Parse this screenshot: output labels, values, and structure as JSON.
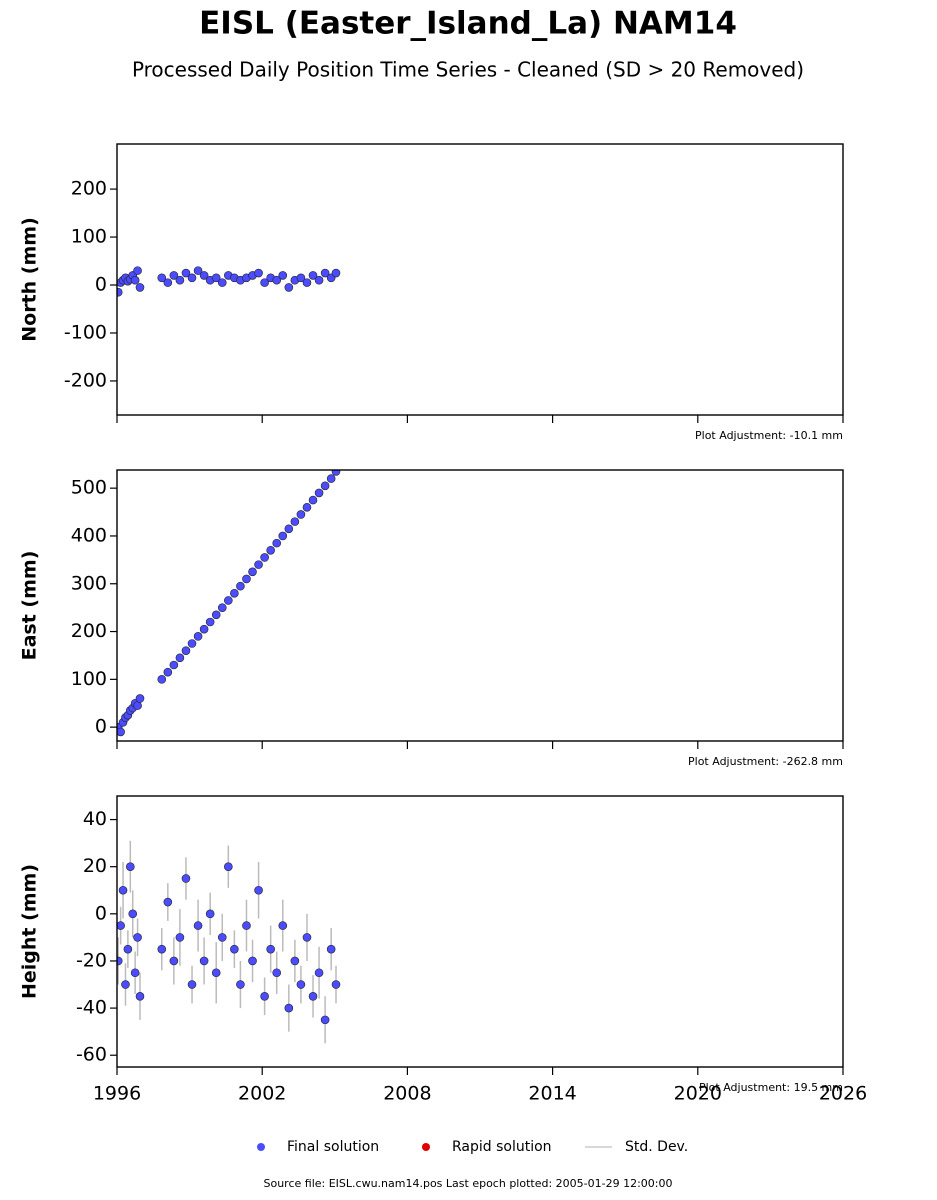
{
  "title": "EISL (Easter_Island_La) NAM14",
  "subtitle": "Processed Daily Position Time Series - Cleaned (SD > 20 Removed)",
  "chart_data": [
    {
      "type": "scatter",
      "y_label": "North (mm)",
      "annotation": "Plot Adjustment: -10.1 mm",
      "color": "#4b4bff",
      "x": [
        1996.05,
        1996.15,
        1996.25,
        1996.35,
        1996.45,
        1996.55,
        1996.65,
        1996.75,
        1996.85,
        1996.95,
        1997.85,
        1998.1,
        1998.35,
        1998.6,
        1998.85,
        1999.1,
        1999.35,
        1999.6,
        1999.85,
        2000.1,
        2000.35,
        2000.6,
        2000.85,
        2001.1,
        2001.35,
        2001.6,
        2001.85,
        2002.1,
        2002.35,
        2002.6,
        2002.85,
        2003.1,
        2003.35,
        2003.6,
        2003.85,
        2004.1,
        2004.35,
        2004.6,
        2004.85,
        2005.05
      ],
      "values": [
        -15,
        5,
        10,
        15,
        8,
        12,
        20,
        10,
        30,
        -5,
        15,
        5,
        20,
        10,
        25,
        15,
        30,
        20,
        10,
        15,
        5,
        20,
        15,
        10,
        15,
        20,
        25,
        5,
        15,
        10,
        20,
        -5,
        10,
        15,
        5,
        20,
        10,
        25,
        15,
        25
      ],
      "xlim": [
        1996,
        2026
      ],
      "xticks": [
        1996,
        2002,
        2008,
        2014,
        2020,
        2026
      ],
      "ylim": [
        -271,
        294
      ],
      "yticks": [
        -200,
        -100,
        0,
        100,
        200
      ]
    },
    {
      "type": "scatter",
      "y_label": "East (mm)",
      "annotation": "Plot Adjustment: -262.8 mm",
      "color": "#4b4bff",
      "x": [
        1996.05,
        1996.15,
        1996.25,
        1996.35,
        1996.45,
        1996.55,
        1996.65,
        1996.75,
        1996.85,
        1996.95,
        1997.85,
        1998.1,
        1998.35,
        1998.6,
        1998.85,
        1999.1,
        1999.35,
        1999.6,
        1999.85,
        2000.1,
        2000.35,
        2000.6,
        2000.85,
        2001.1,
        2001.35,
        2001.6,
        2001.85,
        2002.1,
        2002.35,
        2002.6,
        2002.85,
        2003.1,
        2003.35,
        2003.6,
        2003.85,
        2004.1,
        2004.35,
        2004.6,
        2004.85,
        2005.05
      ],
      "values": [
        0,
        -10,
        10,
        20,
        25,
        35,
        40,
        50,
        45,
        60,
        100,
        115,
        130,
        145,
        160,
        175,
        190,
        205,
        220,
        235,
        250,
        265,
        280,
        295,
        310,
        325,
        340,
        355,
        370,
        385,
        400,
        415,
        430,
        445,
        460,
        475,
        490,
        505,
        520,
        535
      ],
      "xlim": [
        1996,
        2026
      ],
      "xticks": [
        1996,
        2002,
        2008,
        2014,
        2020,
        2026
      ],
      "ylim": [
        -29,
        538
      ],
      "yticks": [
        0,
        100,
        200,
        300,
        400,
        500
      ]
    },
    {
      "type": "scatter",
      "y_label": "Height (mm)",
      "annotation": "Plot Adjustment: 19.5 mm",
      "color": "#4b4bff",
      "error_color": "#bbbbbb",
      "x": [
        1996.05,
        1996.15,
        1996.25,
        1996.35,
        1996.45,
        1996.55,
        1996.65,
        1996.75,
        1996.85,
        1996.95,
        1997.85,
        1998.1,
        1998.35,
        1998.6,
        1998.85,
        1999.1,
        1999.35,
        1999.6,
        1999.85,
        2000.1,
        2000.35,
        2000.6,
        2000.85,
        2001.1,
        2001.35,
        2001.6,
        2001.85,
        2002.1,
        2002.35,
        2002.6,
        2002.85,
        2003.1,
        2003.35,
        2003.6,
        2003.85,
        2004.1,
        2004.35,
        2004.6,
        2004.85,
        2005.05
      ],
      "values": [
        -20,
        -5,
        10,
        -30,
        -15,
        20,
        0,
        -25,
        -10,
        -35,
        -15,
        5,
        -20,
        -10,
        15,
        -30,
        -5,
        -20,
        0,
        -25,
        -10,
        20,
        -15,
        -30,
        -5,
        -20,
        10,
        -35,
        -15,
        -25,
        -5,
        -40,
        -20,
        -30,
        -10,
        -35,
        -25,
        -45,
        -15,
        -30
      ],
      "errors": [
        10,
        8,
        12,
        9,
        8,
        11,
        10,
        9,
        8,
        10,
        9,
        8,
        10,
        12,
        9,
        8,
        11,
        10,
        9,
        13,
        10,
        9,
        8,
        10,
        11,
        9,
        12,
        8,
        10,
        9,
        11,
        10,
        9,
        8,
        10,
        9,
        11,
        10,
        9,
        8
      ],
      "xlim": [
        1996,
        2026
      ],
      "xticks": [
        1996,
        2002,
        2008,
        2014,
        2020,
        2026
      ],
      "ylim": [
        -65,
        50
      ],
      "yticks": [
        -60,
        -40,
        -20,
        0,
        20,
        40
      ]
    }
  ],
  "legend": [
    {
      "name": "Final solution",
      "color": "#4b4bff",
      "kind": "marker"
    },
    {
      "name": "Rapid solution",
      "color": "#e00000",
      "kind": "marker"
    },
    {
      "name": "Std. Dev.",
      "color": "#cccccc",
      "kind": "line"
    }
  ],
  "footer": "Source file: EISL.cwu.nam14.pos  Last epoch plotted: 2005-01-29 12:00:00"
}
